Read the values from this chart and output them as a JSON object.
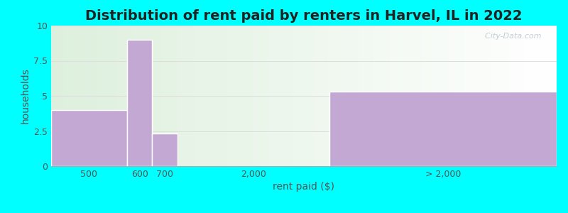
{
  "title": "Distribution of rent paid by renters in Harvel, IL in 2022",
  "xlabel": "rent paid ($)",
  "ylabel": "households",
  "bg_outer": "#00FFFF",
  "bg_inner_left": "#d8efd8",
  "bg_inner_right": "#f5f5ff",
  "bar_color": "#c4a8d4",
  "bar_edge_color": "#ffffff",
  "categories": [
    "500",
    "600",
    "700",
    "2,000",
    "> 2,000"
  ],
  "values": [
    4,
    9,
    2.3,
    0,
    5.3
  ],
  "ylim": [
    0,
    10
  ],
  "yticks": [
    0,
    2.5,
    5,
    7.5,
    10
  ],
  "title_fontsize": 14,
  "label_fontsize": 10,
  "tick_fontsize": 9,
  "watermark": "  City-Data.com",
  "bar_lefts": [
    0,
    1.5,
    2.0,
    2.5,
    5.5
  ],
  "bar_widths": [
    1.5,
    0.5,
    0.5,
    3.0,
    4.5
  ],
  "tick_positions": [
    0.75,
    1.75,
    2.25,
    4.0,
    7.75
  ],
  "xlim": [
    0,
    10
  ]
}
